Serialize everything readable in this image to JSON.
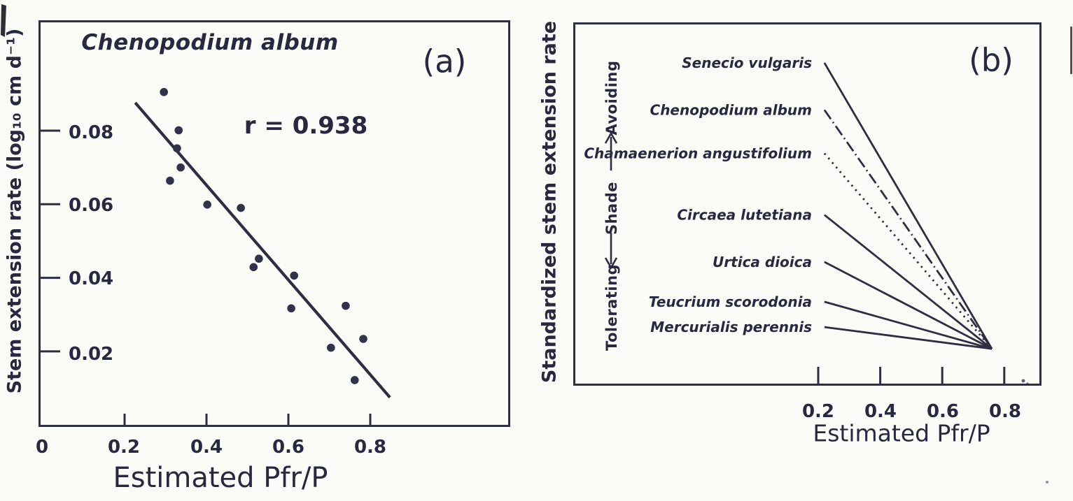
{
  "figure_type": "scanned journal figure, two panels",
  "ink_color": "#282840",
  "background_color": "#fbfbf7",
  "chart_data": [
    {
      "panel": "a",
      "type": "scatter",
      "panel_label": "(a)",
      "title": "Chenopodium album",
      "annotation": "r = 0.938",
      "r_value": 0.938,
      "xlabel": "Estimated Pfr/P",
      "ylabel": "Stem extension rate (log₁₀ cm d⁻¹)",
      "xlim": [
        0,
        1.14
      ],
      "ylim": [
        0,
        0.11
      ],
      "grid": false,
      "x_ticks": [
        "0",
        "0.2",
        "0.4",
        "0.6",
        "0.8"
      ],
      "x_tick_values": [
        0,
        0.2,
        0.4,
        0.6,
        0.8
      ],
      "y_ticks": [
        "0.02",
        "0.04",
        "0.06",
        "0.08"
      ],
      "y_tick_values": [
        0.02,
        0.04,
        0.06,
        0.08
      ],
      "points": [
        [
          0.296,
          0.0905
        ],
        [
          0.332,
          0.0801
        ],
        [
          0.328,
          0.0752
        ],
        [
          0.337,
          0.07
        ],
        [
          0.311,
          0.0664
        ],
        [
          0.402,
          0.0599
        ],
        [
          0.484,
          0.059
        ],
        [
          0.528,
          0.0452
        ],
        [
          0.515,
          0.0429
        ],
        [
          0.614,
          0.0406
        ],
        [
          0.607,
          0.0317
        ],
        [
          0.74,
          0.0324
        ],
        [
          0.704,
          0.021
        ],
        [
          0.783,
          0.0234
        ],
        [
          0.762,
          0.0122
        ]
      ],
      "regression_line": {
        "x1": 0.226,
        "y1": 0.0876,
        "x2": 0.848,
        "y2": 0.0075
      }
    },
    {
      "panel": "b",
      "type": "line",
      "panel_label": "(b)",
      "xlabel": "Estimated Pfr/P",
      "ylabel": "Standardized stem extension rate",
      "y_axis_note": "standardized, no numeric scale (0-1 normalized here)",
      "xlim": [
        -0.59,
        0.92
      ],
      "grid": false,
      "x_ticks": [
        "0.2",
        "0.4",
        "0.6",
        "0.8"
      ],
      "x_tick_values": [
        0.2,
        0.4,
        0.6,
        0.8
      ],
      "gradient_labels": {
        "top": "Avoiding",
        "middle": "Shade",
        "bottom": "Tolerating"
      },
      "convergence_point": [
        0.76,
        0.1
      ],
      "series": [
        {
          "name": "Senecio vulgaris",
          "line_style": "solid",
          "start": [
            0.22,
            0.89
          ],
          "end": [
            0.76,
            0.1
          ]
        },
        {
          "name": "Chenopodium album",
          "line_style": "dash-dot",
          "start": [
            0.22,
            0.76
          ],
          "end": [
            0.76,
            0.1
          ]
        },
        {
          "name": "Chamaenerion angustifolium",
          "line_style": "dotted",
          "start": [
            0.22,
            0.64
          ],
          "end": [
            0.76,
            0.1
          ]
        },
        {
          "name": "Circaea lutetiana",
          "line_style": "solid",
          "start": [
            0.22,
            0.47
          ],
          "end": [
            0.76,
            0.1
          ]
        },
        {
          "name": "Urtica dioica",
          "line_style": "solid",
          "start": [
            0.22,
            0.34
          ],
          "end": [
            0.76,
            0.1
          ]
        },
        {
          "name": "Teucrium scorodonia",
          "line_style": "solid",
          "start": [
            0.22,
            0.23
          ],
          "end": [
            0.76,
            0.1
          ]
        },
        {
          "name": "Mercurialis perennis",
          "line_style": "solid",
          "start": [
            0.22,
            0.16
          ],
          "end": [
            0.76,
            0.1
          ]
        }
      ]
    }
  ]
}
